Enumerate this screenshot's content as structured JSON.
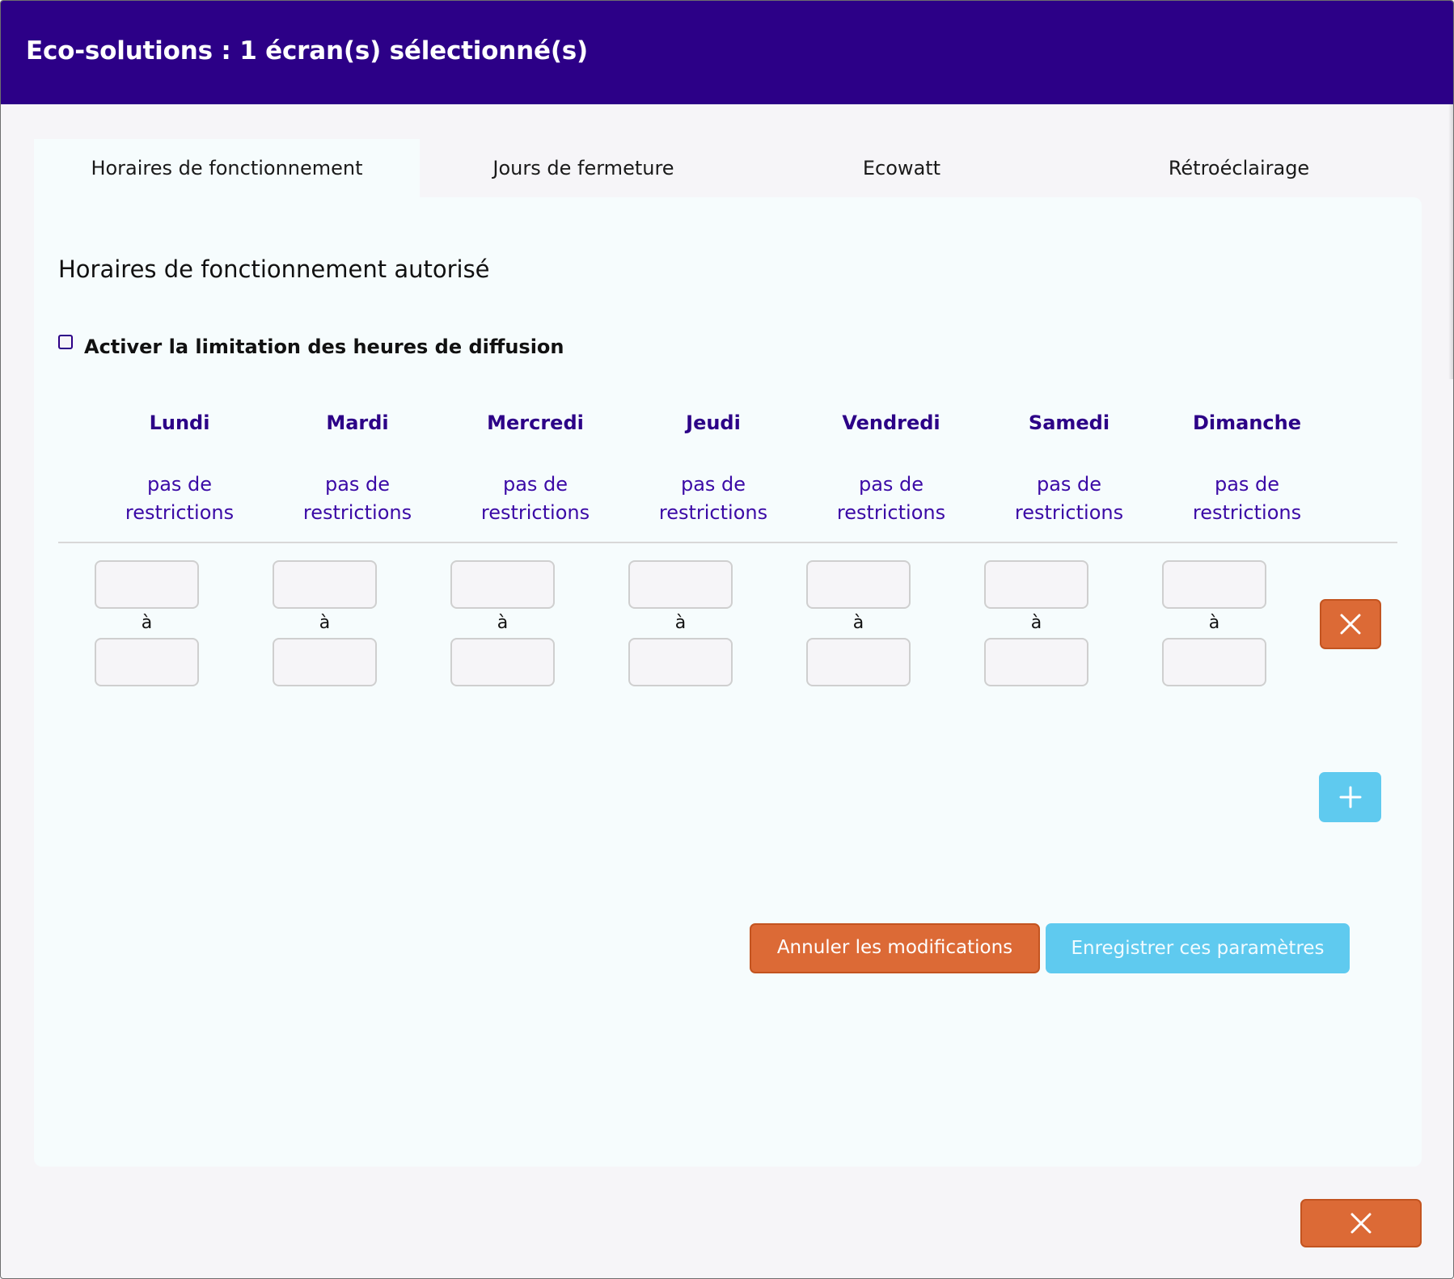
{
  "header": {
    "title": "Eco-solutions : 1 écran(s) sélectionné(s)"
  },
  "tabs": [
    {
      "label": "Horaires de fonctionnement",
      "active": true
    },
    {
      "label": "Jours de fermeture",
      "active": false
    },
    {
      "label": "Ecowatt",
      "active": false
    },
    {
      "label": "Rétroéclairage",
      "active": false
    }
  ],
  "panel": {
    "title": "Horaires de fonctionnement autorisé",
    "enable_label": "Activer la limitation des heures de diffusion",
    "enable_checked": false
  },
  "days": [
    {
      "name": "Lundi",
      "status_line1": "pas de",
      "status_line2": "restrictions",
      "from": "",
      "to": ""
    },
    {
      "name": "Mardi",
      "status_line1": "pas de",
      "status_line2": "restrictions",
      "from": "",
      "to": ""
    },
    {
      "name": "Mercredi",
      "status_line1": "pas de",
      "status_line2": "restrictions",
      "from": "",
      "to": ""
    },
    {
      "name": "Jeudi",
      "status_line1": "pas de",
      "status_line2": "restrictions",
      "from": "",
      "to": ""
    },
    {
      "name": "Vendredi",
      "status_line1": "pas de",
      "status_line2": "restrictions",
      "from": "",
      "to": ""
    },
    {
      "name": "Samedi",
      "status_line1": "pas de",
      "status_line2": "restrictions",
      "from": "",
      "to": ""
    },
    {
      "name": "Dimanche",
      "status_line1": "pas de",
      "status_line2": "restrictions",
      "from": "",
      "to": ""
    }
  ],
  "range_separator": "à",
  "actions": {
    "cancel_label": "Annuler les modifications",
    "save_label": "Enregistrer ces paramètres",
    "delete_row_icon": "close-icon",
    "add_row_icon": "plus-icon",
    "close_icon": "close-icon"
  },
  "colors": {
    "header_bg": "#2c0087",
    "day_text": "#2c0087",
    "danger": "#dc6a36",
    "info": "#5fcaef",
    "panel_bg": "#f6fcfd",
    "page_bg": "#f6f5f8"
  }
}
